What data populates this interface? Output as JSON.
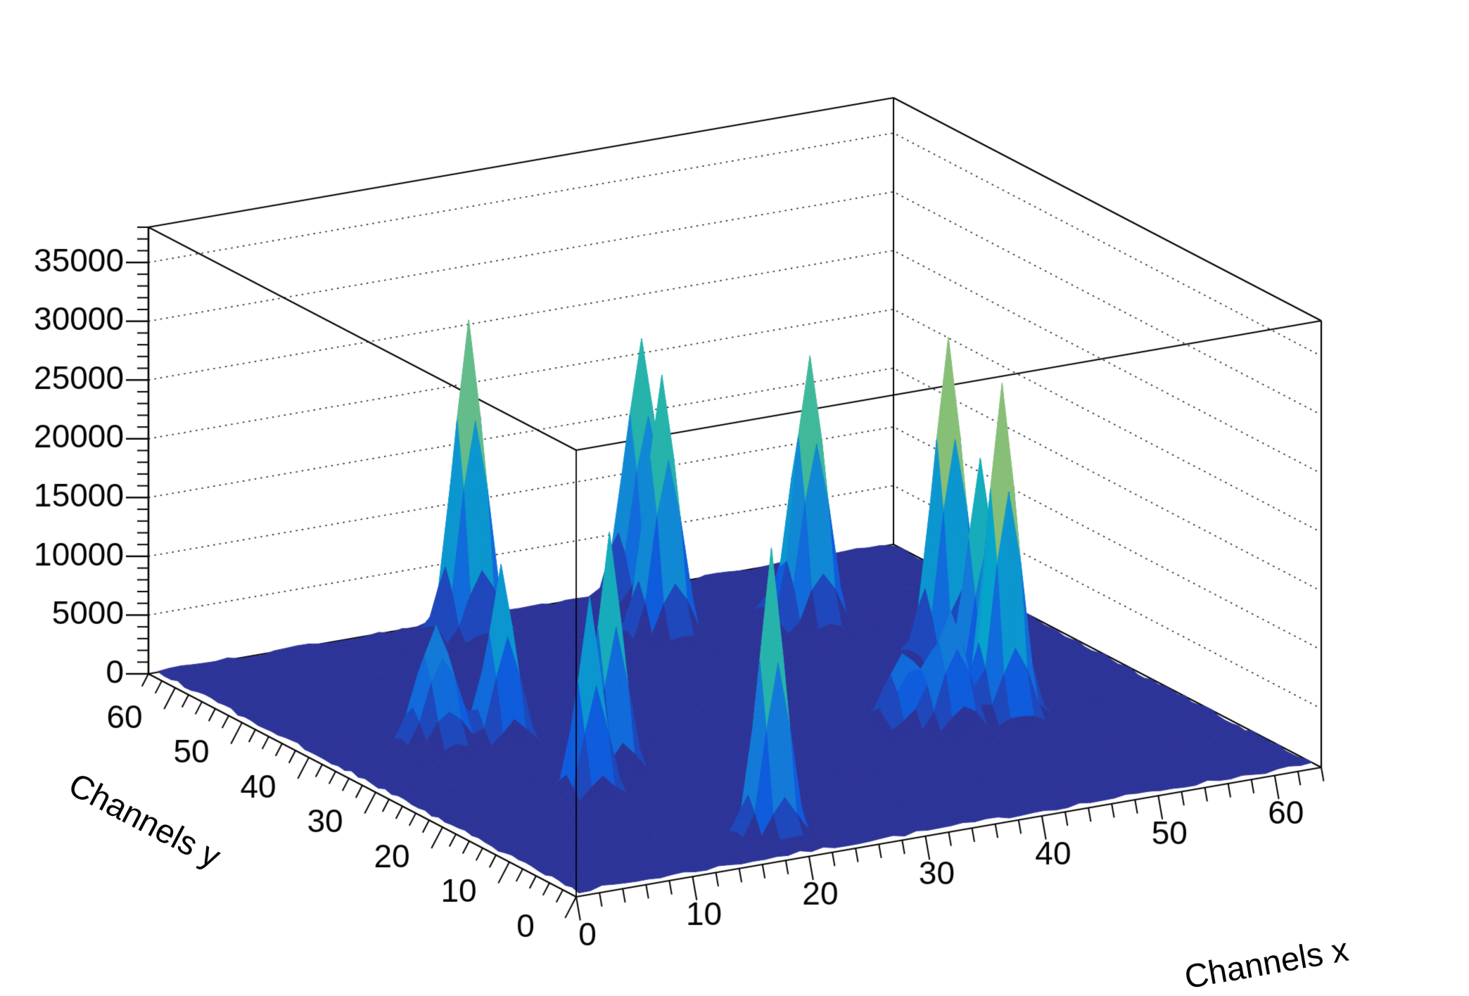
{
  "chart_data": {
    "type": "surface3d",
    "title": "",
    "xlabel": "Channels x",
    "ylabel": "Channels y",
    "zlabel": "",
    "x_range": [
      0,
      64
    ],
    "y_range": [
      0,
      64
    ],
    "z_range": [
      0,
      38000
    ],
    "x_ticks": {
      "major_values": [
        0,
        10,
        20,
        30,
        40,
        50,
        60
      ],
      "minor_step": 2
    },
    "y_ticks": {
      "major_values": [
        0,
        10,
        20,
        30,
        40,
        50,
        60
      ],
      "minor_step": 2
    },
    "z_ticks": {
      "major_values": [
        0,
        5000,
        10000,
        15000,
        20000,
        25000,
        30000,
        35000
      ],
      "minor_step": 1000
    },
    "grid": {
      "nx": 64,
      "ny": 64
    },
    "background": {
      "level": 250,
      "noise": 160,
      "seed": 7
    },
    "palette": {
      "name": "root-bird",
      "levels": 20,
      "zmax": 32000,
      "stops": [
        "#352A87",
        "#0F5CDD",
        "#1481D6",
        "#06A4CA",
        "#2EB7A4",
        "#87BF77",
        "#D1BB59",
        "#FEC832",
        "#F9FB0E"
      ]
    },
    "frame_color": "#000000",
    "peaks": [
      {
        "x": 25.5,
        "y": 60.5,
        "amplitude": 26500,
        "sigma": 1.15
      },
      {
        "x": 41.5,
        "y": 62.5,
        "amplitude": 21500,
        "sigma": 1.2
      },
      {
        "x": 37.5,
        "y": 52.5,
        "amplitude": 22000,
        "sigma": 1.15
      },
      {
        "x": 48.5,
        "y": 49.5,
        "amplitude": 22000,
        "sigma": 1.15
      },
      {
        "x": 53.5,
        "y": 37.5,
        "amplitude": 27000,
        "sigma": 1.15
      },
      {
        "x": 49.5,
        "y": 22.5,
        "amplitude": 28200,
        "sigma": 1.15
      },
      {
        "x": 50.5,
        "y": 27.5,
        "amplitude": 20300,
        "sigma": 1.1
      },
      {
        "x": 17.5,
        "y": 25.5,
        "amplitude": 20200,
        "sigma": 1.0
      },
      {
        "x": 13.5,
        "y": 21.5,
        "amplitude": 16400,
        "sigma": 0.95
      },
      {
        "x": 14.5,
        "y": 36.5,
        "amplitude": 14700,
        "sigma": 1.0
      },
      {
        "x": 9.5,
        "y": 37.5,
        "amplitude": 10000,
        "sigma": 1.35
      },
      {
        "x": 20.5,
        "y": 6.5,
        "amplitude": 23900,
        "sigma": 1.0
      },
      {
        "x": 44.5,
        "y": 21.5,
        "amplitude": 10000,
        "sigma": 1.2
      },
      {
        "x": 41.5,
        "y": 23.5,
        "amplitude": 6300,
        "sigma": 1.3
      },
      {
        "x": 45.5,
        "y": 27.5,
        "amplitude": 2900,
        "sigma": 1.4
      },
      {
        "x": 47.5,
        "y": 51.5,
        "amplitude": 2400,
        "sigma": 1.6
      },
      {
        "x": 51.5,
        "y": 56.5,
        "amplitude": 2000,
        "sigma": 1.6
      }
    ]
  }
}
